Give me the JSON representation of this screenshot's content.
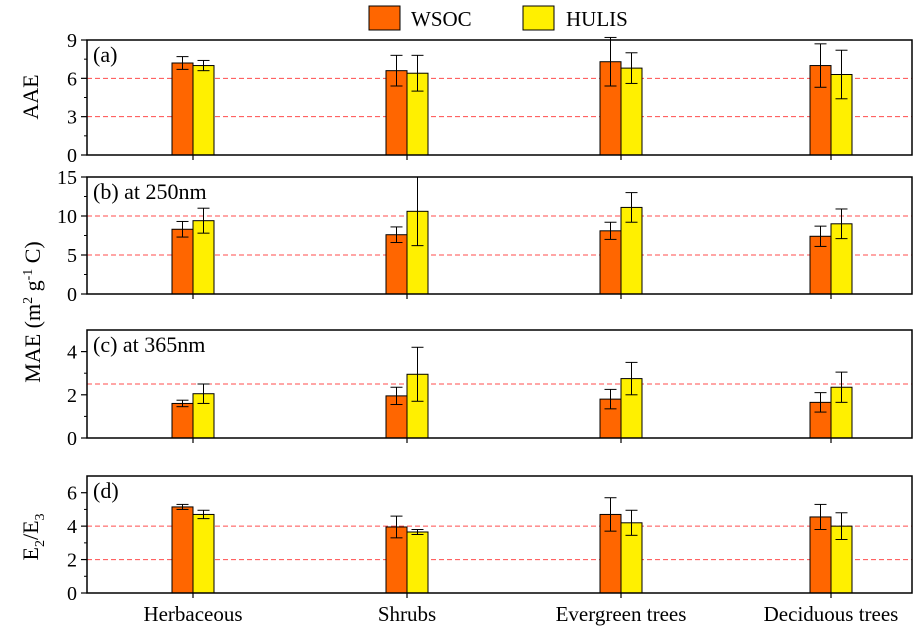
{
  "colors": {
    "wsoc": "#FF6600",
    "hulis": "#FFF000",
    "ref_line": "#FF4D4D",
    "frame": "#000000"
  },
  "legend": [
    {
      "name": "WSOC",
      "color": "#FF6600"
    },
    {
      "name": "HULIS",
      "color": "#FFF000"
    }
  ],
  "y_labels": {
    "a": "AAE",
    "mae_main": "MAE (m",
    "mae_sup1": "2",
    "mae_mid": " g",
    "mae_sup2": "-1",
    "mae_end": " C)",
    "d_main": "E",
    "d_sub1": "2",
    "d_mid": "/E",
    "d_sub2": "3"
  },
  "chart_data": [
    {
      "type": "bar",
      "panel_label": "(a)",
      "categories": [
        "Herbaceous",
        "Shrubs",
        "Evergreen trees",
        "Deciduous trees"
      ],
      "ylabel": "AAE",
      "ylim": [
        0,
        9
      ],
      "yticks": [
        0,
        3,
        6,
        9
      ],
      "reference_lines": [
        3,
        6
      ],
      "series": [
        {
          "name": "WSOC",
          "values": [
            7.2,
            6.6,
            7.3,
            7.0
          ],
          "errors": [
            0.5,
            1.2,
            1.9,
            1.7
          ]
        },
        {
          "name": "HULIS",
          "values": [
            7.0,
            6.4,
            6.8,
            6.3
          ],
          "errors": [
            0.4,
            1.4,
            1.2,
            1.9
          ]
        }
      ]
    },
    {
      "type": "bar",
      "panel_label": "(b) at 250nm",
      "categories": [
        "Herbaceous",
        "Shrubs",
        "Evergreen trees",
        "Deciduous trees"
      ],
      "ylabel": "MAE (m2 g-1 C)",
      "ylim": [
        0,
        15
      ],
      "yticks": [
        0,
        5,
        10,
        15
      ],
      "reference_lines": [
        5,
        10
      ],
      "series": [
        {
          "name": "WSOC",
          "values": [
            8.3,
            7.6,
            8.1,
            7.4
          ],
          "errors": [
            1.0,
            1.0,
            1.1,
            1.3
          ]
        },
        {
          "name": "HULIS",
          "values": [
            9.4,
            10.6,
            11.1,
            9.0
          ],
          "errors": [
            1.6,
            4.4,
            1.9,
            1.9
          ]
        }
      ]
    },
    {
      "type": "bar",
      "panel_label": "(c) at 365nm",
      "categories": [
        "Herbaceous",
        "Shrubs",
        "Evergreen trees",
        "Deciduous trees"
      ],
      "ylabel": "MAE (m2 g-1 C)",
      "ylim": [
        0,
        5
      ],
      "yticks": [
        0,
        2,
        4
      ],
      "reference_lines": [
        2.5
      ],
      "series": [
        {
          "name": "WSOC",
          "values": [
            1.6,
            1.95,
            1.8,
            1.65
          ],
          "errors": [
            0.15,
            0.4,
            0.45,
            0.45
          ]
        },
        {
          "name": "HULIS",
          "values": [
            2.05,
            2.95,
            2.75,
            2.35
          ],
          "errors": [
            0.45,
            1.25,
            0.75,
            0.7
          ]
        }
      ]
    },
    {
      "type": "bar",
      "panel_label": "(d)",
      "categories": [
        "Herbaceous",
        "Shrubs",
        "Evergreen trees",
        "Deciduous trees"
      ],
      "ylabel": "E2/E3",
      "ylim": [
        0,
        7
      ],
      "yticks": [
        0,
        2,
        4,
        6
      ],
      "reference_lines": [
        2,
        4
      ],
      "series": [
        {
          "name": "WSOC",
          "values": [
            5.15,
            3.95,
            4.7,
            4.55
          ],
          "errors": [
            0.15,
            0.65,
            1.0,
            0.75
          ]
        },
        {
          "name": "HULIS",
          "values": [
            4.7,
            3.65,
            4.2,
            4.0
          ],
          "errors": [
            0.25,
            0.15,
            0.75,
            0.8
          ]
        }
      ]
    }
  ]
}
